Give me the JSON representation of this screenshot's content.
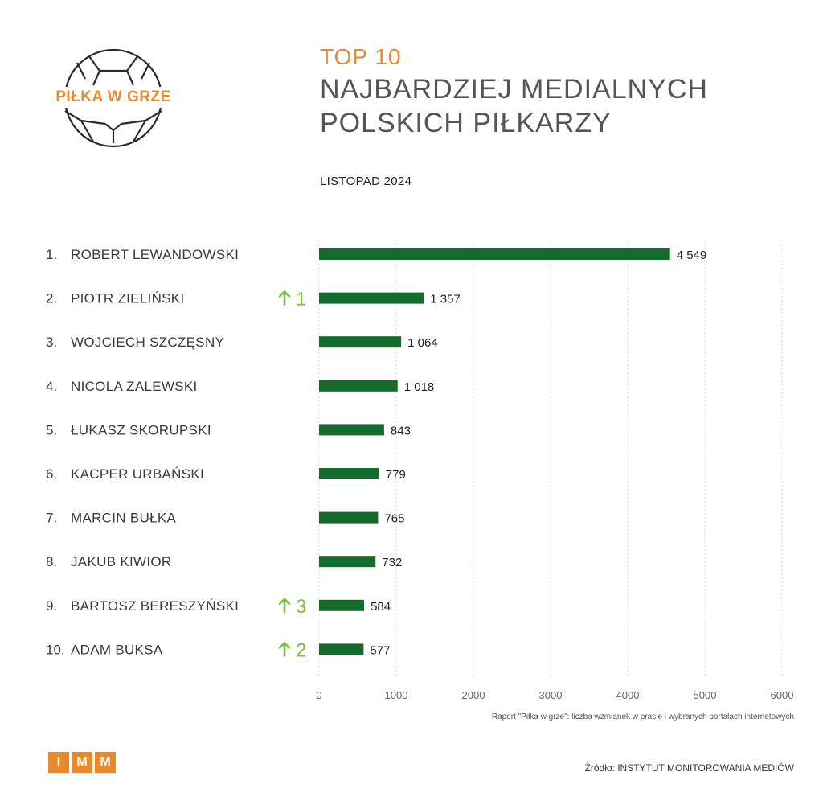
{
  "logo": {
    "text": "PIŁKA W GRZE",
    "icon": "football-icon"
  },
  "header": {
    "top_label": "TOP 10",
    "title_line1": "NAJBARDZIEJ MEDIALNYCH",
    "title_line2": "POLSKICH PIŁKARZY",
    "period": "LISTOPAD 2024"
  },
  "colors": {
    "bar": "#136b2c",
    "accent": "#e8892b",
    "change": "#7cc043"
  },
  "chart_data": {
    "type": "bar",
    "orientation": "horizontal",
    "categories": [
      "ROBERT LEWANDOWSKI",
      "PIOTR ZIELIŃSKI",
      "WOJCIECH SZCZĘSNY",
      "NICOLA ZALEWSKI",
      "ŁUKASZ SKORUPSKI",
      "KACPER URBAŃSKI",
      "MARCIN BUŁKA",
      "JAKUB KIWIOR",
      "BARTOSZ BERESZYŃSKI",
      "ADAM BUKSA"
    ],
    "ranks": [
      "1.",
      "2.",
      "3.",
      "4.",
      "5.",
      "6.",
      "7.",
      "8.",
      "9.",
      "10."
    ],
    "values": [
      4549,
      1357,
      1064,
      1018,
      843,
      779,
      765,
      732,
      584,
      577
    ],
    "value_labels": [
      "4 549",
      "1 357",
      "1 064",
      "1 018",
      "843",
      "779",
      "765",
      "732",
      "584",
      "577"
    ],
    "rank_change": [
      "",
      "1",
      "",
      "",
      "",
      "",
      "",
      "",
      "3",
      "2"
    ],
    "xlim": [
      0,
      6000
    ],
    "xticks": [
      0,
      1000,
      2000,
      3000,
      4000,
      5000,
      6000
    ],
    "grid": true,
    "legend": "none"
  },
  "footer": {
    "note": "Raport \"Piłka w grze\": liczba wzmianek w prasie i wybranych portalach internetowych",
    "imm_letters": [
      "I",
      "M",
      "M"
    ],
    "source": "Źródło: INSTYTUT MONITOROWANIA MEDIÓW"
  }
}
